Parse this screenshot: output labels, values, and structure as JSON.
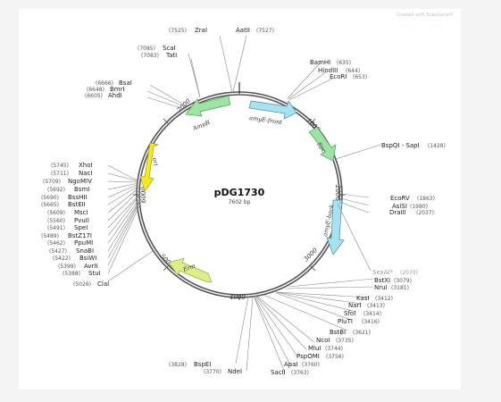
{
  "plasmid": {
    "name": "pDG1730",
    "length": "7602 bp"
  },
  "credit": "Created with SnapGene®",
  "ticks": [
    "1000",
    "2000",
    "3000",
    "4000",
    "5000",
    "6000",
    "7000"
  ],
  "features": [
    {
      "name": "amyE-front",
      "color": "#a6e2f0"
    },
    {
      "name": "Spc",
      "color": "#9de4a2"
    },
    {
      "name": "amyE-back",
      "color": "#a6e2f0"
    },
    {
      "name": "Erm",
      "color": "#dcf08a"
    },
    {
      "name": "ori",
      "color": "#f6ea1e"
    },
    {
      "name": "AmpR",
      "color": "#9de4a2"
    }
  ],
  "sites": {
    "zral": {
      "name": "ZraI",
      "pos": "(7525)"
    },
    "aatii": {
      "name": "AatII",
      "pos": "(7527)"
    },
    "scai": {
      "name": "ScaI",
      "pos": "(7085)"
    },
    "tati": {
      "name": "TatI",
      "pos": "(7083)"
    },
    "bsai": {
      "name": "BsaI",
      "pos": "(6666)"
    },
    "bmri": {
      "name": "BmrI",
      "pos": "(6648)"
    },
    "ahdi": {
      "name": "AhdI",
      "pos": "(6605)"
    },
    "bamhi": {
      "name": "BamHI",
      "pos": "(635)"
    },
    "hindiii": {
      "name": "HindIII",
      "pos": "(644)"
    },
    "ecori": {
      "name": "EcoRI",
      "pos": "(653)"
    },
    "bspqi": {
      "name": "BspQI - SapI",
      "pos": "(1428)"
    },
    "ecorv": {
      "name": "EcoRV",
      "pos": "(1863)"
    },
    "asisi": {
      "name": "AsiSI",
      "pos": "(1980)"
    },
    "draiii": {
      "name": "DraIII",
      "pos": "(2037)"
    },
    "xhoi": {
      "name": "XhoI",
      "pos": "(5745)"
    },
    "naci": {
      "name": "NacI",
      "pos": "(5711)"
    },
    "ngomiv": {
      "name": "NgoMIV",
      "pos": "(5709)"
    },
    "bsmi": {
      "name": "BsmI",
      "pos": "(5692)"
    },
    "bsshii": {
      "name": "BssHII",
      "pos": "(5690)"
    },
    "bsteii": {
      "name": "BstEII",
      "pos": "(5665)"
    },
    "msci": {
      "name": "MscI",
      "pos": "(5609)"
    },
    "pvuii": {
      "name": "PvuII",
      "pos": "(5560)"
    },
    "spei": {
      "name": "SpeI",
      "pos": "(5491)"
    },
    "bstz17i": {
      "name": "BstZ17I",
      "pos": "(5489)"
    },
    "ppumi": {
      "name": "PpuMI",
      "pos": "(5462)"
    },
    "snabi": {
      "name": "SnaBI",
      "pos": "(5427)"
    },
    "bsiwi": {
      "name": "BsiWI",
      "pos": "(5422)"
    },
    "avrii": {
      "name": "AvrII",
      "pos": "(5399)"
    },
    "stui": {
      "name": "StuI",
      "pos": "(5388)"
    },
    "clai": {
      "name": "ClaI",
      "pos": "(5026)"
    },
    "sexai": {
      "name": "SexAI*",
      "pos": "(2070)"
    },
    "bstxi": {
      "name": "BstXI",
      "pos": "(3079)"
    },
    "nrui": {
      "name": "NruI",
      "pos": "(3181)"
    },
    "kasi": {
      "name": "KasI",
      "pos": "(3412)"
    },
    "nari": {
      "name": "NarI",
      "pos": "(3413)"
    },
    "sfoi": {
      "name": "SfoI",
      "pos": "(3414)"
    },
    "plutI": {
      "name": "PluTI",
      "pos": "(3416)"
    },
    "bstbi": {
      "name": "BstBI",
      "pos": "(3621)"
    },
    "ncoi": {
      "name": "NcoI",
      "pos": "(3735)"
    },
    "mlui": {
      "name": "MluI",
      "pos": "(3744)"
    },
    "psp0mi": {
      "name": "PspOMI",
      "pos": "(3756)"
    },
    "apai": {
      "name": "ApaI",
      "pos": "(3760)"
    },
    "sacii": {
      "name": "SacII",
      "pos": "(3763)"
    },
    "bspei": {
      "name": "BspEI",
      "pos": "(3828)"
    },
    "ndei": {
      "name": "NdeI",
      "pos": "(3770)"
    }
  }
}
